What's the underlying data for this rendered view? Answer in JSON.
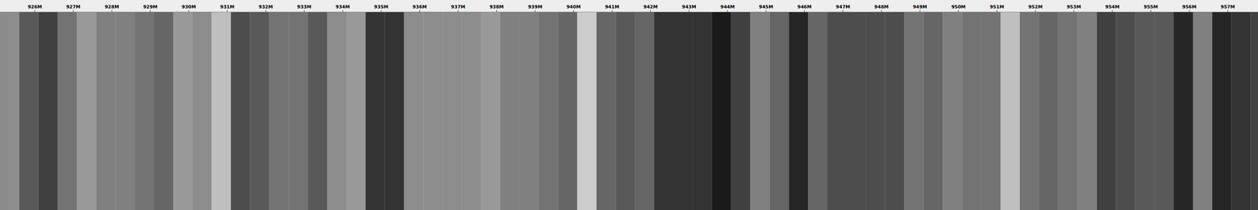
{
  "chart_data": {
    "type": "spectrogram",
    "bins": [
      925.1,
      925.6,
      926.1,
      926.6,
      927.1,
      927.6,
      928.1,
      928.6,
      929.1,
      929.6,
      930.1,
      930.6,
      931.1,
      931.6,
      932.1,
      932.6,
      933.1,
      933.6,
      934.1,
      934.6,
      935.1,
      935.6,
      936.1,
      936.6,
      937.1,
      937.6,
      938.1,
      938.6,
      939.1,
      939.6,
      940.1,
      940.6,
      941.1,
      941.6,
      942.1,
      942.6,
      943.1,
      943.6,
      944.1,
      944.6,
      945.1,
      945.6,
      946.1,
      946.6,
      947.1,
      947.6,
      948.1,
      948.6,
      949.1,
      949.6,
      950.1,
      950.6,
      951.1,
      951.6,
      952.1,
      952.6,
      953.1,
      953.6,
      954.1,
      954.6,
      955.1,
      955.6,
      956.1,
      956.6,
      957.1,
      957.6,
      957.79
    ],
    "values": [
      0.55,
      0.35,
      0.25,
      0.45,
      0.6,
      0.5,
      0.5,
      0.45,
      0.4,
      0.6,
      0.55,
      0.75,
      0.3,
      0.35,
      0.45,
      0.45,
      0.35,
      0.55,
      0.6,
      0.2,
      0.2,
      0.55,
      0.55,
      0.55,
      0.55,
      0.6,
      0.5,
      0.5,
      0.45,
      0.4,
      0.8,
      0.4,
      0.35,
      0.4,
      0.2,
      0.2,
      0.2,
      0.1,
      0.25,
      0.5,
      0.4,
      0.15,
      0.4,
      0.3,
      0.3,
      0.3,
      0.3,
      0.45,
      0.4,
      0.5,
      0.45,
      0.45,
      0.75,
      0.45,
      0.4,
      0.45,
      0.5,
      0.25,
      0.3,
      0.35,
      0.35,
      0.15,
      0.5,
      0.15,
      0.2,
      0.25
    ],
    "zlim": [
      0,
      1
    ],
    "xlim": [
      925.1,
      957.79
    ],
    "xticks": [
      {
        "value": 926,
        "label": "926M"
      },
      {
        "value": 927,
        "label": "927M"
      },
      {
        "value": 928,
        "label": "928M"
      },
      {
        "value": 929,
        "label": "929M"
      },
      {
        "value": 930,
        "label": "930M"
      },
      {
        "value": 931,
        "label": "931M"
      },
      {
        "value": 932,
        "label": "932M"
      },
      {
        "value": 933,
        "label": "933M"
      },
      {
        "value": 934,
        "label": "934M"
      },
      {
        "value": 935,
        "label": "935M"
      },
      {
        "value": 936,
        "label": "936M"
      },
      {
        "value": 937,
        "label": "937M"
      },
      {
        "value": 938,
        "label": "938M"
      },
      {
        "value": 939,
        "label": "939M"
      },
      {
        "value": 940,
        "label": "940M"
      },
      {
        "value": 941,
        "label": "941M"
      },
      {
        "value": 942,
        "label": "942M"
      },
      {
        "value": 943,
        "label": "943M"
      },
      {
        "value": 944,
        "label": "944M"
      },
      {
        "value": 945,
        "label": "945M"
      },
      {
        "value": 946,
        "label": "946M"
      },
      {
        "value": 947,
        "label": "947M"
      },
      {
        "value": 948,
        "label": "948M"
      },
      {
        "value": 949,
        "label": "949M"
      },
      {
        "value": 950,
        "label": "950M"
      },
      {
        "value": 951,
        "label": "951M"
      },
      {
        "value": 952,
        "label": "952M"
      },
      {
        "value": 953,
        "label": "953M"
      },
      {
        "value": 954,
        "label": "954M"
      },
      {
        "value": 955,
        "label": "955M"
      },
      {
        "value": 956,
        "label": "956M"
      },
      {
        "value": 957,
        "label": "957M"
      }
    ],
    "tick_labels": "x"
  }
}
